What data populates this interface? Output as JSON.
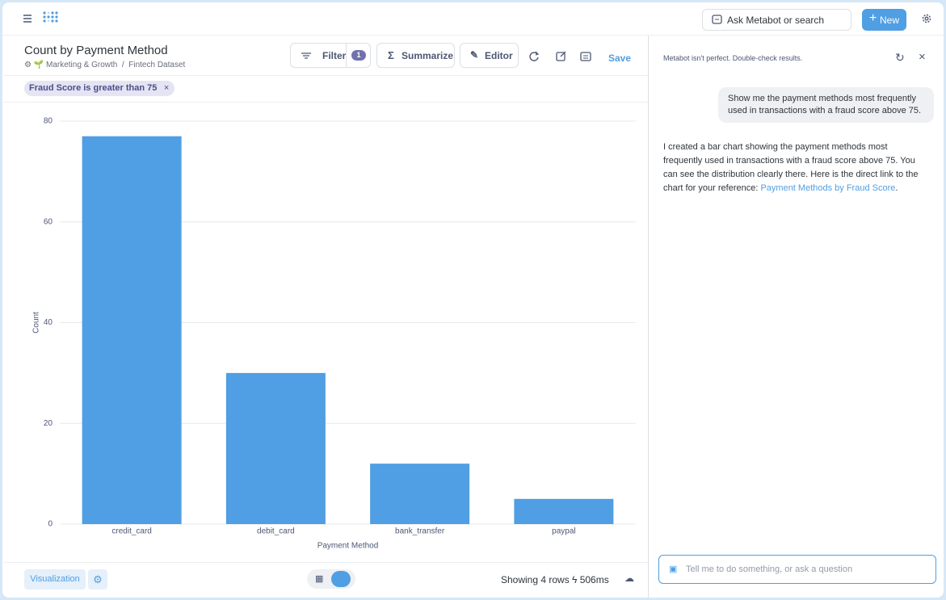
{
  "nav": {
    "search": "Ask Metabot or search",
    "new_button": "New"
  },
  "header": {
    "title": "Count by Payment Method",
    "breadcrumb": [
      "Marketing & Growth",
      "Fintech Dataset"
    ],
    "filter_button": "Filter",
    "filter_count": "1",
    "summarize_button": "Summarize",
    "editor_button": "Editor",
    "save_button": "Save"
  },
  "filter_pill": "Fraud Score is greater than 75",
  "chart_data": {
    "type": "bar",
    "x_label": "Payment Method",
    "y_label": "Count",
    "categories": [
      "credit_card",
      "debit_card",
      "bank_transfer",
      "paypal"
    ],
    "values": [
      77,
      30,
      12,
      5
    ],
    "color": "#509ee3",
    "ylim": [
      0,
      80
    ],
    "yticks": [
      0,
      20,
      40,
      60,
      80
    ],
    "grid": true
  },
  "footer": {
    "visualization_button": "Visualization",
    "row_count": "Showing 4 rows",
    "timing": "506ms"
  },
  "metabot": {
    "notice": "Metabot isn't perfect. Double-check results.",
    "user_message": "Show me the payment methods most frequently used in transactions with a fraud score above 75.",
    "reply_text": "I created a bar chart showing the payment methods most frequently used in transactions with a fraud score above 75. You can see the distribution clearly there. Here is the direct link to the chart for your reference: ",
    "reply_link": "Payment Methods by Fraud Score",
    "reply_end": ".",
    "input_placeholder": "Tell me to do something, or ask a question"
  }
}
